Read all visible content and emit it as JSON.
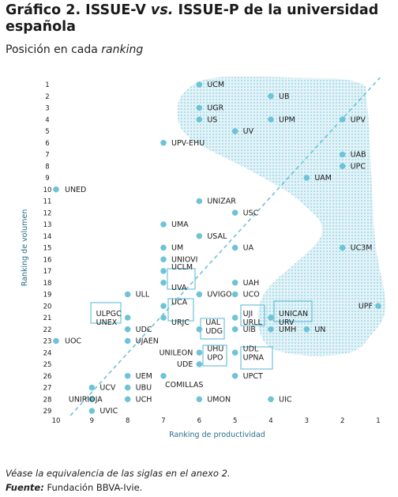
{
  "title": {
    "prefix": "Gráfico 2. ISSUE-V ",
    "vs": "vs.",
    "suffix": " ISSUE-P de la universidad española"
  },
  "subtitle": {
    "text": "Posición en cada ",
    "italic": "ranking"
  },
  "footnote": "Véase la equivalencia de las siglas en el anexo 2.",
  "source": {
    "label": "Fuente:",
    "text": " Fundación BBVA-Ivie."
  },
  "chart_data": {
    "type": "scatter",
    "xlabel": "Ranking de productividad",
    "ylabel": "Ranking de volumen",
    "xlim": [
      10,
      1
    ],
    "ylim": [
      1,
      29
    ],
    "x_reversed": true,
    "x_ticks": [
      10,
      9,
      8,
      7,
      6,
      5,
      4,
      3,
      2,
      1
    ],
    "y_ticks": [
      1,
      2,
      3,
      4,
      5,
      6,
      7,
      8,
      9,
      10,
      11,
      12,
      13,
      14,
      15,
      16,
      17,
      18,
      19,
      20,
      21,
      22,
      23,
      24,
      25,
      26,
      27,
      28,
      29
    ],
    "grid": false,
    "diagonal": true,
    "point_color": "#6ec3d7",
    "region_color": "#6ec3d7",
    "points": [
      {
        "label": "UCM",
        "x": 6,
        "y": 1
      },
      {
        "label": "UB",
        "x": 4,
        "y": 2
      },
      {
        "label": "UGR",
        "x": 6,
        "y": 3
      },
      {
        "label": "US",
        "x": 6,
        "y": 4
      },
      {
        "label": "UPM",
        "x": 4,
        "y": 4
      },
      {
        "label": "UPV",
        "x": 2,
        "y": 4
      },
      {
        "label": "UV",
        "x": 5,
        "y": 5
      },
      {
        "label": "UPV-EHU",
        "x": 7,
        "y": 6
      },
      {
        "label": "UAB",
        "x": 2,
        "y": 7
      },
      {
        "label": "UPC",
        "x": 2,
        "y": 8
      },
      {
        "label": "UAM",
        "x": 3,
        "y": 9
      },
      {
        "label": "UNED",
        "x": 10,
        "y": 10
      },
      {
        "label": "UNIZAR",
        "x": 6,
        "y": 11
      },
      {
        "label": "USC",
        "x": 5,
        "y": 12
      },
      {
        "label": "UMA",
        "x": 7,
        "y": 13
      },
      {
        "label": "USAL",
        "x": 6,
        "y": 14
      },
      {
        "label": "UM",
        "x": 7,
        "y": 15
      },
      {
        "label": "UA",
        "x": 5,
        "y": 15
      },
      {
        "label": "UC3M",
        "x": 2,
        "y": 15
      },
      {
        "label": "UNIOVI",
        "x": 7,
        "y": 16
      },
      {
        "label": "UCLM",
        "x": 7,
        "y": 17
      },
      {
        "label": "UVA",
        "x": 7,
        "y": 18
      },
      {
        "label": "UAH",
        "x": 5,
        "y": 18
      },
      {
        "label": "ULL",
        "x": 8,
        "y": 19
      },
      {
        "label": "UVIGO",
        "x": 6,
        "y": 19
      },
      {
        "label": "UCO",
        "x": 5,
        "y": 19
      },
      {
        "label": "UCA",
        "x": 7,
        "y": 20
      },
      {
        "label": "UPF",
        "x": 1,
        "y": 20
      },
      {
        "label": "ULPGC",
        "x": 8,
        "y": 21
      },
      {
        "label": "UNEX",
        "x": 8,
        "y": 21
      },
      {
        "label": "URJC",
        "x": 7,
        "y": 21
      },
      {
        "label": "UJI",
        "x": 5,
        "y": 21
      },
      {
        "label": "URLL",
        "x": 5,
        "y": 21
      },
      {
        "label": "UNICAN",
        "x": 4,
        "y": 21
      },
      {
        "label": "URV",
        "x": 4,
        "y": 21
      },
      {
        "label": "UAL",
        "x": 6,
        "y": 22
      },
      {
        "label": "UDC",
        "x": 8,
        "y": 22
      },
      {
        "label": "UIB",
        "x": 5,
        "y": 22
      },
      {
        "label": "UMH",
        "x": 4,
        "y": 22
      },
      {
        "label": "UN",
        "x": 3,
        "y": 22
      },
      {
        "label": "UDG",
        "x": 6,
        "y": 22
      },
      {
        "label": "UOC",
        "x": 10,
        "y": 23
      },
      {
        "label": "UJAEN",
        "x": 8,
        "y": 23
      },
      {
        "label": "UNILEON",
        "x": 6,
        "y": 24
      },
      {
        "label": "UHU",
        "x": 6,
        "y": 24
      },
      {
        "label": "UPO",
        "x": 6,
        "y": 24
      },
      {
        "label": "UDL",
        "x": 5,
        "y": 24
      },
      {
        "label": "UPNA",
        "x": 5,
        "y": 24
      },
      {
        "label": "UDE",
        "x": 6,
        "y": 25
      },
      {
        "label": "UEM",
        "x": 8,
        "y": 26
      },
      {
        "label": "UPCT",
        "x": 5,
        "y": 26
      },
      {
        "label": "UCV",
        "x": 9,
        "y": 27
      },
      {
        "label": "UBU",
        "x": 8,
        "y": 27
      },
      {
        "label": "COMILLAS",
        "x": 7,
        "y": 26
      },
      {
        "label": "UNIRIOJA",
        "x": 9,
        "y": 28
      },
      {
        "label": "UCH",
        "x": 8,
        "y": 28
      },
      {
        "label": "UMON",
        "x": 6,
        "y": 28
      },
      {
        "label": "UIC",
        "x": 4,
        "y": 28
      },
      {
        "label": "UVIC",
        "x": 9,
        "y": 29
      }
    ],
    "groups": [
      [
        "UCLM",
        "UVA"
      ],
      [
        "ULPGC",
        "UNEX"
      ],
      [
        "UCA",
        "URJC"
      ],
      [
        "UJI",
        "URLL"
      ],
      [
        "UNICAN",
        "URV"
      ],
      [
        "UAL",
        "UDG"
      ],
      [
        "UHU",
        "UPO"
      ],
      [
        "UDL",
        "UPNA"
      ]
    ]
  }
}
